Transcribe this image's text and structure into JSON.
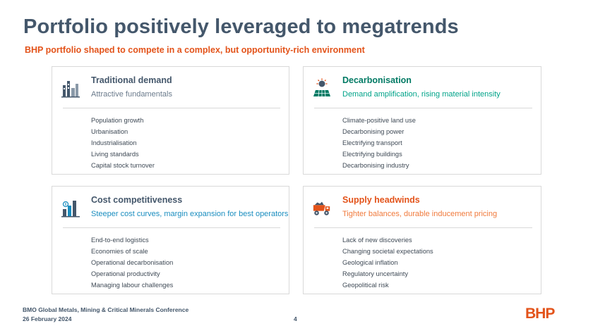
{
  "title": "Portfolio positively leveraged to megatrends",
  "subtitle": "BHP portfolio shaped to compete in a complex, but opportunity-rich environment",
  "cards": [
    {
      "title": "Traditional demand",
      "subtitle": "Attractive fundamentals",
      "icon": "industry-icon",
      "title_color": "#44576b",
      "subtitle_color": "#6b7b8c",
      "items": [
        "Population growth",
        "Urbanisation",
        "Industrialisation",
        "Living standards",
        "Capital stock turnover"
      ]
    },
    {
      "title": "Decarbonisation",
      "subtitle": "Demand amplification, rising material intensity",
      "icon": "solar-panel-icon",
      "title_color": "#007a64",
      "subtitle_color": "#00a389",
      "items": [
        "Climate-positive land use",
        "Decarbonising power",
        "Electrifying transport",
        "Electrifying buildings",
        "Decarbonising industry"
      ]
    },
    {
      "title": "Cost competitiveness",
      "subtitle": "Steeper cost curves, margin expansion for best operators",
      "icon": "cost-bars-icon",
      "title_color": "#44576b",
      "subtitle_color": "#1a8dbf",
      "items": [
        "End-to-end logistics",
        "Economies of scale",
        "Operational decarbonisation",
        "Operational productivity",
        "Managing labour challenges"
      ]
    },
    {
      "title": "Supply headwinds",
      "subtitle": "Tighter balances, durable inducement pricing",
      "icon": "mining-truck-icon",
      "title_color": "#e3531a",
      "subtitle_color": "#f07a3c",
      "items": [
        "Lack of new discoveries",
        "Changing societal expectations",
        "Geological inflation",
        "Regulatory uncertainty",
        "Geopolitical risk"
      ]
    }
  ],
  "footer": {
    "event": "BMO Global Metals, Mining & Critical Minerals Conference",
    "date": "26 February 2024",
    "page": "4",
    "logo": "BHP"
  }
}
